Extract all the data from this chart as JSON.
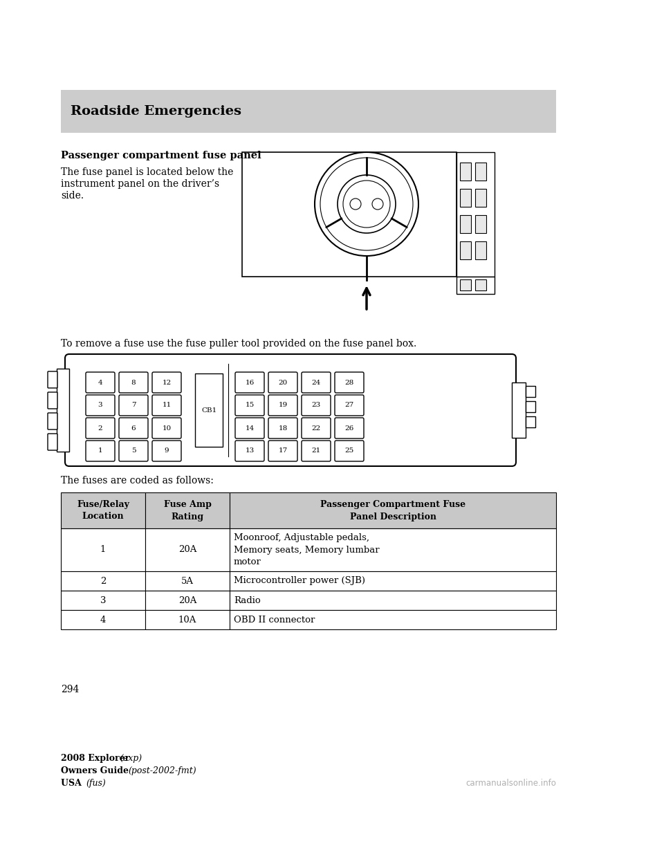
{
  "page_bg": "#ffffff",
  "header_bg": "#cccccc",
  "header_text": "Roadside Emergencies",
  "section_title": "Passenger compartment fuse panel",
  "para1_line1": "The fuse panel is located below the",
  "para1_line2": "instrument panel on the driver’s",
  "para1_line3": "side.",
  "para2": "To remove a fuse use the fuse puller tool provided on the fuse panel box.",
  "para3": "The fuses are coded as follows:",
  "table_headers": [
    "Fuse/Relay\nLocation",
    "Fuse Amp\nRating",
    "Passenger Compartment Fuse\nPanel Description"
  ],
  "table_rows": [
    [
      "1",
      "20A",
      "Moonroof, Adjustable pedals,\nMemory seats, Memory lumbar\nmotor"
    ],
    [
      "2",
      "5A",
      "Microcontroller power (SJB)"
    ],
    [
      "3",
      "20A",
      "Radio"
    ],
    [
      "4",
      "10A",
      "OBD II connector"
    ]
  ],
  "footer_line1_bold": "2008 Explorer ",
  "footer_line1_italic": "(exp)",
  "footer_line2_bold": "Owners Guide ",
  "footer_line2_italic": "(post-2002-fmt)",
  "footer_line3_bold": "USA ",
  "footer_line3_italic": "(fus)",
  "page_number": "294",
  "fuse_left_grid": [
    [
      "4",
      "8",
      "12"
    ],
    [
      "3",
      "7",
      "11"
    ],
    [
      "2",
      "6",
      "10"
    ],
    [
      "1",
      "5",
      "9"
    ]
  ],
  "fuse_right_grid": [
    [
      "16",
      "20",
      "24",
      "28"
    ],
    [
      "15",
      "19",
      "23",
      "27"
    ],
    [
      "14",
      "18",
      "22",
      "26"
    ],
    [
      "13",
      "17",
      "21",
      "25"
    ]
  ],
  "cb1_label": "CB1",
  "watermark": "carmanualsonline.info"
}
